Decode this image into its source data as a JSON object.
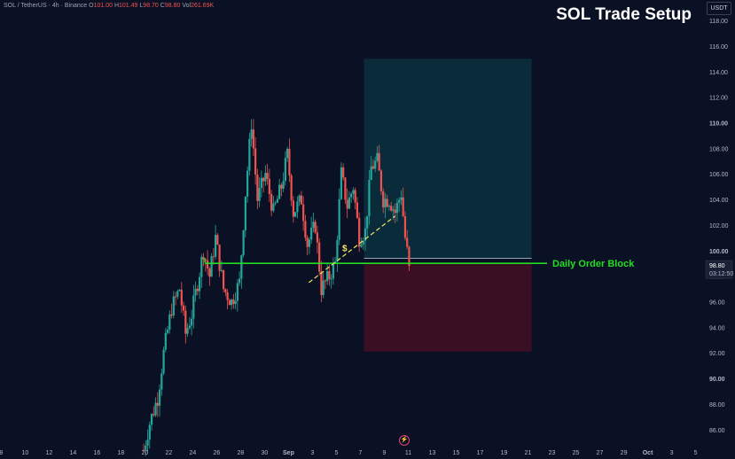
{
  "header": {
    "symbol": "SOL / TetherUS · 4h · Binance",
    "open_label": "O",
    "open": "101.00",
    "high_label": "H",
    "high": "101.49",
    "low_label": "L",
    "low": "98.70",
    "close_label": "C",
    "close": "98.80",
    "vol_label": "Vol",
    "vol": "261.69K"
  },
  "currency_button": "USDT",
  "colors": {
    "background": "#0b1124",
    "bull": "#26a69a",
    "bear": "#ef5350",
    "order_block_line": "#22dd22",
    "target_zone": "#0a2b3a",
    "stop_zone": "#3a0f24",
    "trendline": "#f5e663"
  },
  "chart_data": {
    "type": "candlestick",
    "title": "SOL Trade Setup",
    "ylim": [
      84.6,
      119.6
    ],
    "y_ticks": [
      "118.00",
      "116.00",
      "114.00",
      "112.00",
      "110.00",
      "108.00",
      "106.00",
      "104.00",
      "102.00",
      "100.00",
      "98.00",
      "96.00",
      "94.00",
      "92.00",
      "90.00",
      "88.00",
      "86.00"
    ],
    "x_ticks": [
      "8",
      "10",
      "12",
      "14",
      "16",
      "18",
      "20",
      "22",
      "24",
      "26",
      "28",
      "30",
      "Sep",
      "3",
      "5",
      "7",
      "9",
      "11",
      "13",
      "15",
      "17",
      "19",
      "21",
      "23",
      "25",
      "27",
      "29",
      "Oct",
      "3",
      "5"
    ],
    "x_tick_days": [
      -23,
      -21,
      -19,
      -17,
      -15,
      -13,
      -11,
      -9,
      -7,
      -5,
      -3,
      -1,
      1,
      3,
      5,
      7,
      9,
      11,
      13,
      15,
      17,
      19,
      21,
      23,
      25,
      27,
      29,
      31,
      33,
      35
    ],
    "x_domain_days": [
      -23.1,
      35.4
    ],
    "current_price": "98.80",
    "countdown": "03:12:50",
    "order_block": {
      "label": "Daily Order Block",
      "price": 99.0,
      "start_day": -6.0
    },
    "target_zone": {
      "price_top": 115.0,
      "price_bottom": 99.4,
      "start_day": 7.3,
      "end_day": 21.3
    },
    "stop_zone": {
      "price_top": 99.0,
      "price_bottom": 92.1,
      "start_day": 7.3,
      "end_day": 21.3
    },
    "entry_price": 99.4,
    "trendline": {
      "label": "$",
      "from_day": 2.7,
      "from_price": 97.5,
      "to_day": 9.9,
      "to_price": 102.7
    },
    "candles": {
      "start_day": -11.1,
      "step_days": 0.1667,
      "start_price": 84.4,
      "anchors": [
        [
          0,
          84.4
        ],
        [
          3,
          86.5
        ],
        [
          7,
          88.5
        ],
        [
          10,
          92
        ],
        [
          14,
          95.5
        ],
        [
          18,
          97
        ],
        [
          21,
          93.5
        ],
        [
          24,
          95
        ],
        [
          30,
          100
        ],
        [
          33,
          98
        ],
        [
          36,
          101
        ],
        [
          40,
          97
        ],
        [
          44,
          96
        ],
        [
          48,
          97.5
        ],
        [
          51,
          104.5
        ],
        [
          54,
          110
        ],
        [
          57,
          104
        ],
        [
          61,
          106
        ],
        [
          65,
          103
        ],
        [
          69,
          105
        ],
        [
          72,
          107.5
        ],
        [
          75,
          103
        ],
        [
          79,
          104
        ],
        [
          82,
          100.5
        ],
        [
          86,
          102
        ],
        [
          89,
          97
        ],
        [
          93,
          98
        ],
        [
          96,
          99
        ],
        [
          99,
          106
        ],
        [
          102,
          103.5
        ],
        [
          105,
          105
        ],
        [
          108,
          101
        ],
        [
          111,
          101.5
        ],
        [
          114,
          106.5
        ],
        [
          117,
          107
        ],
        [
          120,
          104
        ],
        [
          123,
          104
        ],
        [
          126,
          103
        ],
        [
          129,
          104.5
        ],
        [
          131,
          101
        ],
        [
          133,
          98.8
        ]
      ]
    }
  }
}
